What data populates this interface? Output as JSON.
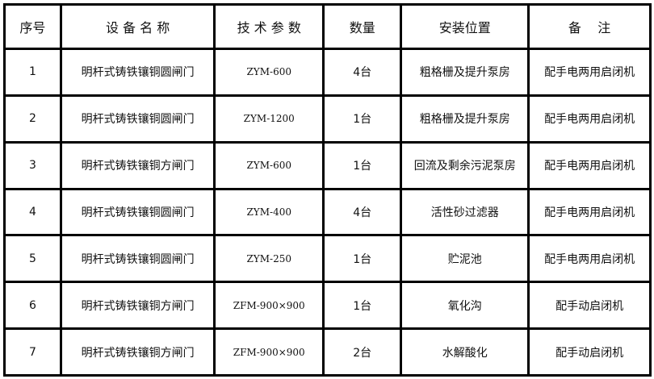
{
  "header": [
    "序号",
    "设 备 名 称",
    "技 术 参 数",
    "数量",
    "安装位置",
    "备    注"
  ],
  "rows": [
    [
      "1",
      "明杆式铸铁镶铜圆闸门",
      "ZYM-600",
      "4台",
      "粗格栅及提升泵房",
      "配手电两用启闭机"
    ],
    [
      "2",
      "明杆式铸铁镶铜圆闸门",
      "ZYM-1200",
      "1台",
      "粗格栅及提升泵房",
      "配手电两用启闭机"
    ],
    [
      "3",
      "明杆式铸铁镶铜方闸门",
      "ZYM-600",
      "1台",
      "回流及剩余污泥泵房",
      "配手电两用启闭机"
    ],
    [
      "4",
      "明杆式铸铁镶铜圆闸门",
      "ZYM-400",
      "4台",
      "活性砂过滤器",
      "配手电两用启闭机"
    ],
    [
      "5",
      "明杆式铸铁镶铜圆闸门",
      "ZYM-250",
      "1台",
      "贮泥池",
      "配手电两用启闭机"
    ],
    [
      "6",
      "明杆式铸铁镶铜方闸门",
      "ZFM-900×900",
      "1台",
      "氧化沟",
      "配手动启闭机"
    ],
    [
      "7",
      "明杆式铸铁镶铜方闸门",
      "ZFM-900×900",
      "2台",
      "水解酸化",
      "配手动启闭机"
    ]
  ]
}
